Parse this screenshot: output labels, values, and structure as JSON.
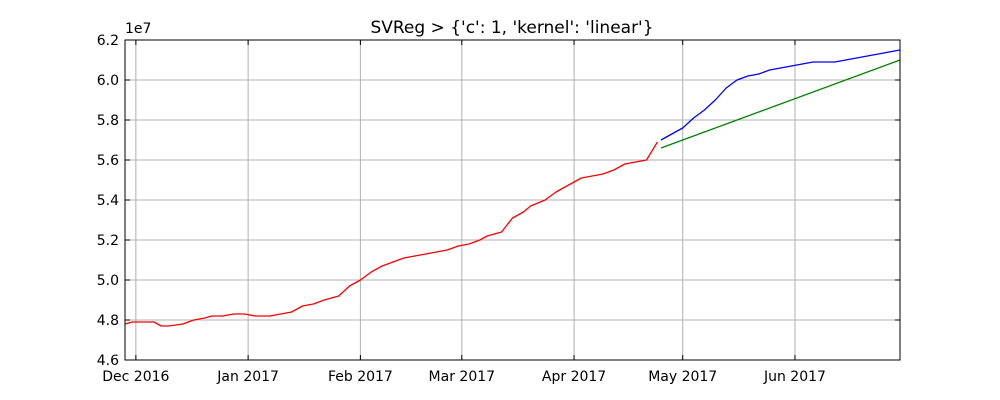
{
  "chart_data": {
    "type": "line",
    "title": "SVReg > {'c': 1, 'kernel': 'linear'}",
    "xlabel": "",
    "ylabel": "",
    "y_offset_label": "1e7",
    "y_scale": 10000000,
    "grid": true,
    "xlim": [
      "2016-11-28",
      "2017-06-30"
    ],
    "ylim": [
      4.6,
      6.2
    ],
    "x_ticks": [
      {
        "date": "2016-12-01",
        "label": "Dec 2016"
      },
      {
        "date": "2017-01-01",
        "label": "Jan 2017"
      },
      {
        "date": "2017-02-01",
        "label": "Feb 2017"
      },
      {
        "date": "2017-03-01",
        "label": "Mar 2017"
      },
      {
        "date": "2017-04-01",
        "label": "Apr 2017"
      },
      {
        "date": "2017-05-01",
        "label": "May 2017"
      },
      {
        "date": "2017-06-01",
        "label": "Jun 2017"
      }
    ],
    "y_ticks": [
      4.6,
      4.8,
      5.0,
      5.2,
      5.4,
      5.6,
      5.8,
      6.0,
      6.2
    ],
    "y_tick_labels": [
      "4.6",
      "4.8",
      "5.0",
      "5.2",
      "5.4",
      "5.6",
      "5.8",
      "6.0",
      "6.2"
    ],
    "series": [
      {
        "color": "#ff0000",
        "x": [
          "2016-11-28",
          "2016-11-30",
          "2016-12-03",
          "2016-12-06",
          "2016-12-08",
          "2016-12-10",
          "2016-12-14",
          "2016-12-17",
          "2016-12-20",
          "2016-12-22",
          "2016-12-25",
          "2016-12-28",
          "2016-12-31",
          "2017-01-03",
          "2017-01-07",
          "2017-01-10",
          "2017-01-13",
          "2017-01-16",
          "2017-01-19",
          "2017-01-22",
          "2017-01-26",
          "2017-01-29",
          "2017-02-01",
          "2017-02-04",
          "2017-02-07",
          "2017-02-10",
          "2017-02-13",
          "2017-02-16",
          "2017-02-19",
          "2017-02-22",
          "2017-02-25",
          "2017-02-28",
          "2017-03-03",
          "2017-03-06",
          "2017-03-08",
          "2017-03-12",
          "2017-03-15",
          "2017-03-18",
          "2017-03-20",
          "2017-03-24",
          "2017-03-27",
          "2017-03-30",
          "2017-04-01",
          "2017-04-03",
          "2017-04-06",
          "2017-04-09",
          "2017-04-12",
          "2017-04-15",
          "2017-04-18",
          "2017-04-21",
          "2017-04-24"
        ],
        "y": [
          4.78,
          4.79,
          4.79,
          4.79,
          4.77,
          4.77,
          4.78,
          4.8,
          4.81,
          4.82,
          4.82,
          4.83,
          4.83,
          4.82,
          4.82,
          4.83,
          4.84,
          4.87,
          4.88,
          4.9,
          4.92,
          4.97,
          5.0,
          5.04,
          5.07,
          5.09,
          5.11,
          5.12,
          5.13,
          5.14,
          5.15,
          5.17,
          5.18,
          5.2,
          5.22,
          5.24,
          5.31,
          5.34,
          5.37,
          5.4,
          5.44,
          5.47,
          5.49,
          5.51,
          5.52,
          5.53,
          5.55,
          5.58,
          5.59,
          5.6,
          5.69
        ]
      },
      {
        "color": "#0000ff",
        "x": [
          "2017-04-25",
          "2017-04-28",
          "2017-05-01",
          "2017-05-04",
          "2017-05-07",
          "2017-05-10",
          "2017-05-13",
          "2017-05-16",
          "2017-05-19",
          "2017-05-22",
          "2017-05-25",
          "2017-05-28",
          "2017-05-31",
          "2017-06-03",
          "2017-06-06",
          "2017-06-09",
          "2017-06-12",
          "2017-06-15",
          "2017-06-18",
          "2017-06-21",
          "2017-06-24",
          "2017-06-27",
          "2017-06-30"
        ],
        "y": [
          5.7,
          5.73,
          5.76,
          5.81,
          5.85,
          5.9,
          5.96,
          6.0,
          6.02,
          6.03,
          6.05,
          6.06,
          6.07,
          6.08,
          6.09,
          6.09,
          6.09,
          6.1,
          6.11,
          6.12,
          6.13,
          6.14,
          6.15
        ]
      },
      {
        "color": "#008000",
        "x": [
          "2017-04-25",
          "2017-06-30"
        ],
        "y": [
          5.66,
          6.1
        ]
      }
    ]
  }
}
